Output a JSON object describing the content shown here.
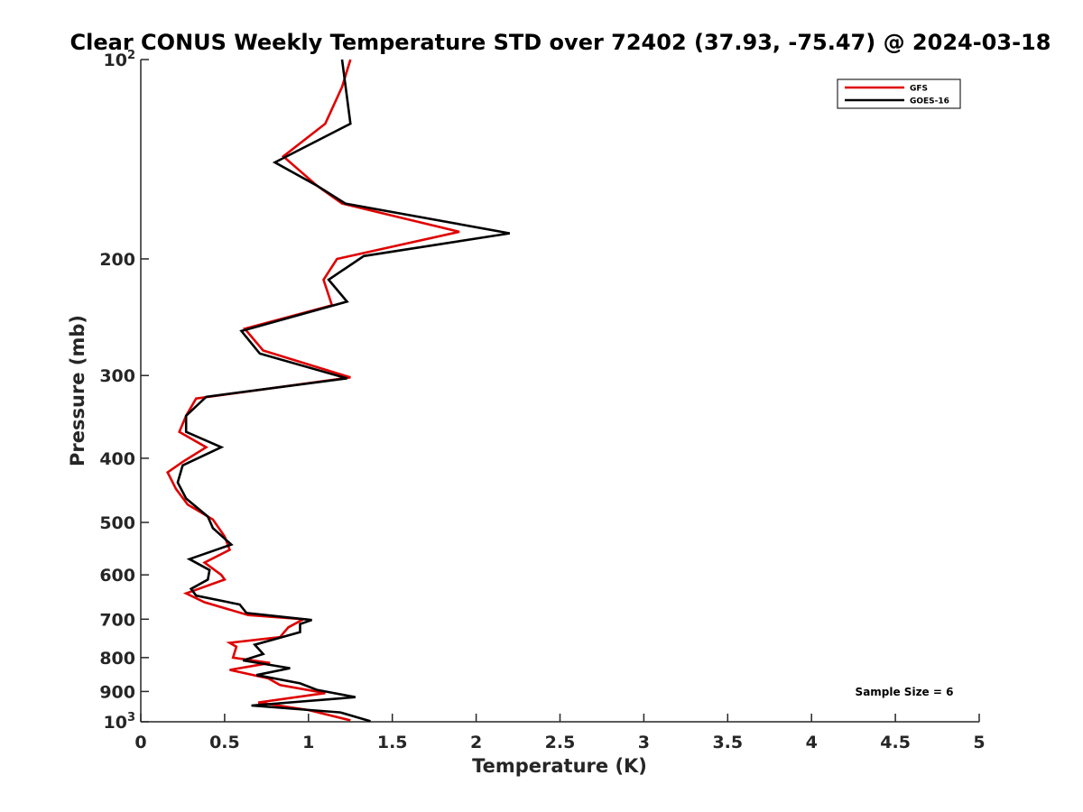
{
  "chart_data": {
    "type": "line",
    "title": "Clear CONUS Weekly Temperature STD over 72402 (37.93, -75.47) @ 2024-03-18",
    "xlabel": "Temperature (K)",
    "ylabel": "Pressure (mb)",
    "xlim": [
      0,
      5
    ],
    "ylim": [
      100,
      1000
    ],
    "y_scale": "log",
    "y_reversed": true,
    "x_ticks": [
      0,
      0.5,
      1,
      1.5,
      2,
      2.5,
      3,
      3.5,
      4,
      4.5,
      5
    ],
    "x_tick_labels": [
      "0",
      "0.5",
      "1",
      "1.5",
      "2",
      "2.5",
      "3",
      "3.5",
      "4",
      "4.5",
      "5"
    ],
    "y_ticks": [
      100,
      200,
      300,
      400,
      500,
      600,
      700,
      800,
      900,
      1000
    ],
    "y_tick_labels": [
      "10²",
      "200",
      "300",
      "400",
      "500",
      "600",
      "700",
      "800",
      "900",
      "10³"
    ],
    "grid": false,
    "legend_position": "top-right",
    "annotation": "Sample Size = 6",
    "series": [
      {
        "name": "GFS",
        "color": "#e00000",
        "points": [
          [
            1.25,
            100
          ],
          [
            1.2,
            110
          ],
          [
            1.1,
            125
          ],
          [
            0.85,
            140
          ],
          [
            1.05,
            155
          ],
          [
            1.2,
            165
          ],
          [
            1.9,
            182
          ],
          [
            1.17,
            200
          ],
          [
            1.09,
            215
          ],
          [
            1.14,
            235
          ],
          [
            0.62,
            255
          ],
          [
            0.73,
            275
          ],
          [
            1.25,
            302
          ],
          [
            0.33,
            325
          ],
          [
            0.27,
            345
          ],
          [
            0.23,
            365
          ],
          [
            0.39,
            385
          ],
          [
            0.25,
            405
          ],
          [
            0.16,
            420
          ],
          [
            0.21,
            445
          ],
          [
            0.28,
            470
          ],
          [
            0.43,
            495
          ],
          [
            0.5,
            525
          ],
          [
            0.53,
            550
          ],
          [
            0.38,
            575
          ],
          [
            0.48,
            600
          ],
          [
            0.5,
            610
          ],
          [
            0.27,
            640
          ],
          [
            0.38,
            660
          ],
          [
            0.64,
            690
          ],
          [
            0.97,
            700
          ],
          [
            0.88,
            720
          ],
          [
            0.83,
            745
          ],
          [
            0.53,
            760
          ],
          [
            0.57,
            770
          ],
          [
            0.55,
            800
          ],
          [
            0.77,
            815
          ],
          [
            0.53,
            835
          ],
          [
            0.76,
            860
          ],
          [
            0.83,
            880
          ],
          [
            1.1,
            905
          ],
          [
            0.7,
            935
          ],
          [
            1.0,
            960
          ],
          [
            1.25,
            995
          ]
        ]
      },
      {
        "name": "GOES-16",
        "color": "#000000",
        "points": [
          [
            1.2,
            100
          ],
          [
            1.25,
            125
          ],
          [
            0.8,
            143
          ],
          [
            1.05,
            155
          ],
          [
            1.22,
            165
          ],
          [
            2.2,
            183
          ],
          [
            1.33,
            198
          ],
          [
            1.12,
            215
          ],
          [
            1.23,
            232
          ],
          [
            0.6,
            257
          ],
          [
            0.71,
            278
          ],
          [
            1.23,
            303
          ],
          [
            0.39,
            323
          ],
          [
            0.27,
            345
          ],
          [
            0.27,
            365
          ],
          [
            0.48,
            385
          ],
          [
            0.25,
            410
          ],
          [
            0.22,
            435
          ],
          [
            0.27,
            460
          ],
          [
            0.4,
            490
          ],
          [
            0.43,
            510
          ],
          [
            0.54,
            540
          ],
          [
            0.29,
            568
          ],
          [
            0.41,
            590
          ],
          [
            0.4,
            610
          ],
          [
            0.3,
            630
          ],
          [
            0.33,
            645
          ],
          [
            0.59,
            665
          ],
          [
            0.63,
            685
          ],
          [
            1.02,
            702
          ],
          [
            0.95,
            712
          ],
          [
            0.95,
            732
          ],
          [
            0.68,
            765
          ],
          [
            0.73,
            790
          ],
          [
            0.61,
            808
          ],
          [
            0.89,
            830
          ],
          [
            0.69,
            850
          ],
          [
            0.95,
            875
          ],
          [
            1.05,
            895
          ],
          [
            1.28,
            918
          ],
          [
            0.66,
            945
          ],
          [
            1.19,
            968
          ],
          [
            1.37,
            998
          ]
        ]
      }
    ]
  }
}
